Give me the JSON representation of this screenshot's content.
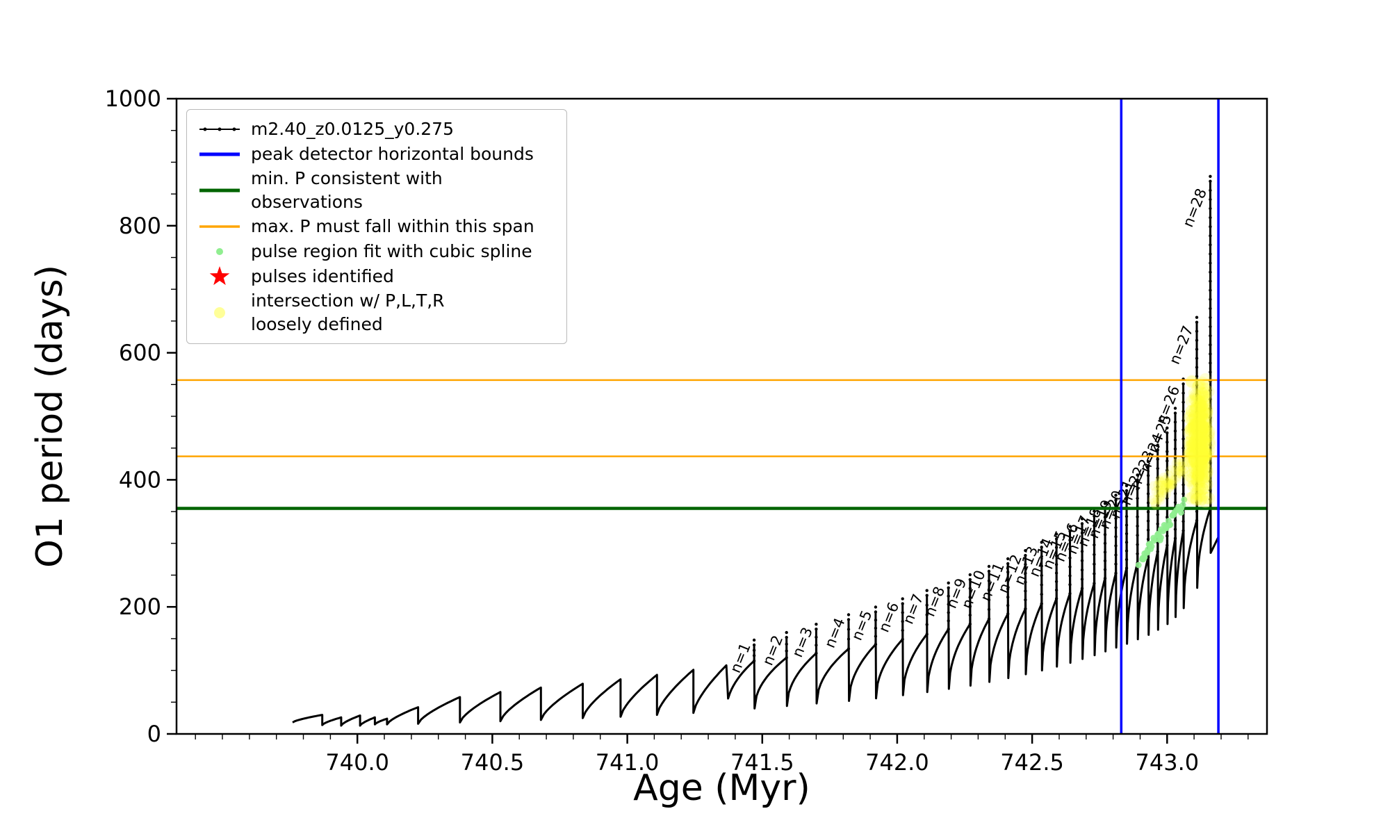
{
  "figure": {
    "bg": "#ffffff",
    "xlabel": "Age (Myr)",
    "ylabel": "O1 period (days)"
  },
  "legend": {
    "items": [
      {
        "label": "m2.40_z0.0125_y0.275",
        "marker": "line-with-dots",
        "color": "#000000"
      },
      {
        "label": "peak detector horizontal bounds",
        "marker": "line",
        "color": "#0000ff"
      },
      {
        "label": "min. P consistent with observations",
        "marker": "line",
        "color": "#006400"
      },
      {
        "label": "max. P must fall within this span",
        "marker": "line",
        "color": "#ffa500"
      },
      {
        "label": "pulse region fit with cubic spline",
        "marker": "dot",
        "color": "#90ee90"
      },
      {
        "label": "pulses identified",
        "marker": "star",
        "color": "#ff0000"
      },
      {
        "label": "intersection w/ P,L,T,R\nloosely defined",
        "marker": "dot",
        "color": "#ffff99"
      }
    ]
  },
  "chart_data": {
    "type": "line",
    "title": "",
    "xlabel": "Age (Myr)",
    "ylabel": "O1 period (days)",
    "xlim": [
      739.33,
      743.37
    ],
    "ylim": [
      0,
      1000
    ],
    "grid": false,
    "legend_position": "upper-left",
    "x_ticks": [
      740.0,
      740.5,
      741.0,
      741.5,
      742.0,
      742.5,
      743.0
    ],
    "x_tick_labels": [
      "740.0",
      "740.5",
      "741.0",
      "741.5",
      "742.0",
      "742.5",
      "743.0"
    ],
    "y_ticks": [
      0,
      200,
      400,
      600,
      800,
      1000
    ],
    "y_tick_labels": [
      "0",
      "200",
      "400",
      "600",
      "800",
      "1000"
    ],
    "series_name": "m2.40_z0.0125_y0.275",
    "series_color": "#000000",
    "early_cycles": [
      [
        739.76,
        18,
        739.87,
        30
      ],
      [
        739.87,
        14,
        739.94,
        26
      ],
      [
        739.94,
        13,
        740.01,
        29
      ],
      [
        740.01,
        13,
        740.065,
        26
      ],
      [
        740.065,
        15,
        740.11,
        24
      ],
      [
        740.11,
        15,
        740.225,
        42
      ],
      [
        740.225,
        16,
        740.38,
        58
      ],
      [
        740.38,
        18,
        740.53,
        66
      ],
      [
        740.53,
        20,
        740.68,
        73
      ],
      [
        740.68,
        22,
        740.835,
        79
      ],
      [
        740.835,
        25,
        740.975,
        86
      ],
      [
        740.975,
        27,
        741.11,
        93
      ],
      [
        741.11,
        30,
        741.245,
        101
      ],
      [
        741.245,
        33,
        741.367,
        108
      ]
    ],
    "pre_pulse_min": 36,
    "pulses": [
      {
        "label": "n=1",
        "age": 741.47,
        "env": 115,
        "top": 140,
        "min_after": 40
      },
      {
        "label": "n=2",
        "age": 741.59,
        "env": 120,
        "top": 152,
        "min_after": 44
      },
      {
        "label": "n=3",
        "age": 741.7,
        "env": 127,
        "top": 165,
        "min_after": 48
      },
      {
        "label": "n=4",
        "age": 741.82,
        "env": 134,
        "top": 180,
        "min_after": 52
      },
      {
        "label": "n=5",
        "age": 741.92,
        "env": 141,
        "top": 192,
        "min_after": 56
      },
      {
        "label": "n=6",
        "age": 742.02,
        "env": 149,
        "top": 205,
        "min_after": 61
      },
      {
        "label": "n=7",
        "age": 742.11,
        "env": 157,
        "top": 218,
        "min_after": 66
      },
      {
        "label": "n=8",
        "age": 742.19,
        "env": 165,
        "top": 230,
        "min_after": 71
      },
      {
        "label": "n=9",
        "age": 742.27,
        "env": 173,
        "top": 243,
        "min_after": 76
      },
      {
        "label": "n=10",
        "age": 742.34,
        "env": 181,
        "top": 256,
        "min_after": 82
      },
      {
        "label": "n=11",
        "age": 742.41,
        "env": 189,
        "top": 268,
        "min_after": 88
      },
      {
        "label": "n=12",
        "age": 742.475,
        "env": 197,
        "top": 281,
        "min_after": 94
      },
      {
        "label": "n=13",
        "age": 742.535,
        "env": 205,
        "top": 294,
        "min_after": 100
      },
      {
        "label": "n=14",
        "age": 742.59,
        "env": 213,
        "top": 307,
        "min_after": 106
      },
      {
        "label": "n=15",
        "age": 742.64,
        "env": 221,
        "top": 319,
        "min_after": 112
      },
      {
        "label": "n=16",
        "age": 742.685,
        "env": 229,
        "top": 331,
        "min_after": 118
      },
      {
        "label": "n=17",
        "age": 742.73,
        "env": 237,
        "top": 343,
        "min_after": 124
      },
      {
        "label": "n=18",
        "age": 742.77,
        "env": 245,
        "top": 355,
        "min_after": 130
      },
      {
        "label": "n=19",
        "age": 742.81,
        "env": 253,
        "top": 368,
        "min_after": 136
      },
      {
        "label": "n=20",
        "age": 742.85,
        "env": 261,
        "top": 383,
        "min_after": 142
      },
      {
        "label": "n=21",
        "age": 742.89,
        "env": 269,
        "top": 400,
        "min_after": 149
      },
      {
        "label": "n=22",
        "age": 742.93,
        "env": 278,
        "top": 421,
        "min_after": 156
      },
      {
        "label": "n=23",
        "age": 742.965,
        "env": 287,
        "top": 447,
        "min_after": 164
      },
      {
        "label": "n=24",
        "age": 743.0,
        "env": 297,
        "top": 474,
        "min_after": 173
      },
      {
        "label": "n=25",
        "age": 743.03,
        "env": 308,
        "top": 505,
        "min_after": 184
      },
      {
        "label": "n=26",
        "age": 743.06,
        "env": 320,
        "top": 551,
        "min_after": 198
      },
      {
        "label": "n=27",
        "age": 743.11,
        "env": 336,
        "top": 648,
        "min_after": 230
      },
      {
        "label": "n=28",
        "age": 743.16,
        "env": 355,
        "top": 870,
        "min_after": 285
      }
    ],
    "curve_end": [
      743.19,
      310
    ],
    "vlines": [
      742.83,
      743.19
    ],
    "vline_color": "#0000ff",
    "vline_label": "peak detector horizontal bounds",
    "hlines": [
      {
        "name": "min-P-line",
        "y": 355,
        "color": "#006400",
        "label": "min. P consistent with observations"
      },
      {
        "name": "max-P-span-lower",
        "y": 437,
        "color": "#ffa500",
        "label": "max. P must fall within this span"
      },
      {
        "name": "max-P-span-upper",
        "y": 557,
        "color": "#ffa500",
        "label": "max. P must fall within this span"
      }
    ],
    "spline_fit_dots": {
      "label": "pulse region fit with cubic spline",
      "color": "#90ee90",
      "from": [
        742.9,
        272
      ],
      "to": [
        743.06,
        362
      ],
      "count": 42
    },
    "intersection_region": {
      "label": "intersection w/ P,L,T,R loosely defined",
      "color": "#ffff33",
      "center": [
        743.12,
        458
      ],
      "spread": [
        0.042,
        105
      ],
      "count": 320,
      "y_range": [
        356,
        558
      ],
      "x_max": 743.185,
      "tail_from": [
        742.95,
        372
      ],
      "tail_count": 70
    }
  }
}
